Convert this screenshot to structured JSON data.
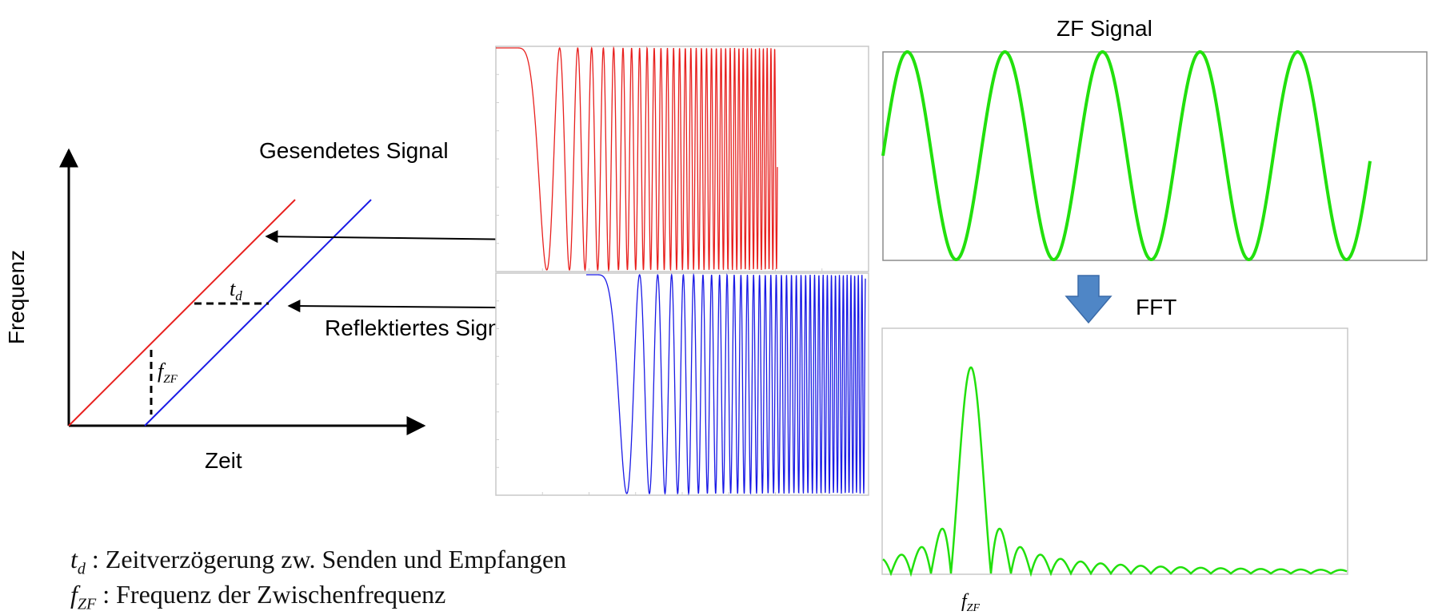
{
  "chirp_diagram": {
    "axis_labels": {
      "x": "Zeit",
      "y": "Frequenz"
    },
    "td_symbol": "t",
    "td_subscript": "d",
    "fzf_symbol": "f",
    "fzf_subscript": "ZF",
    "transmitted_color": "#e8201e",
    "received_color": "#1a1ae6"
  },
  "signals": {
    "transmitted_label": "Gesendetes Signal",
    "reflected_label": "Reflektiertes Signal",
    "zf_title": "ZF Signal",
    "fft_label": "FFT",
    "fft_peak_label_symbol": "f",
    "fft_peak_label_subscript": "ZF",
    "zf_color": "#22e00d",
    "arrow_color": "#4f86c6"
  },
  "legend": {
    "td_symbol": "t",
    "td_subscript": "d",
    "td_text": " : Zeitverzögerung zw. Senden und Empfangen",
    "fzf_symbol": "f",
    "fzf_subscript": "ZF",
    "fzf_text": " : Frequenz der Zwischenfrequenz"
  }
}
